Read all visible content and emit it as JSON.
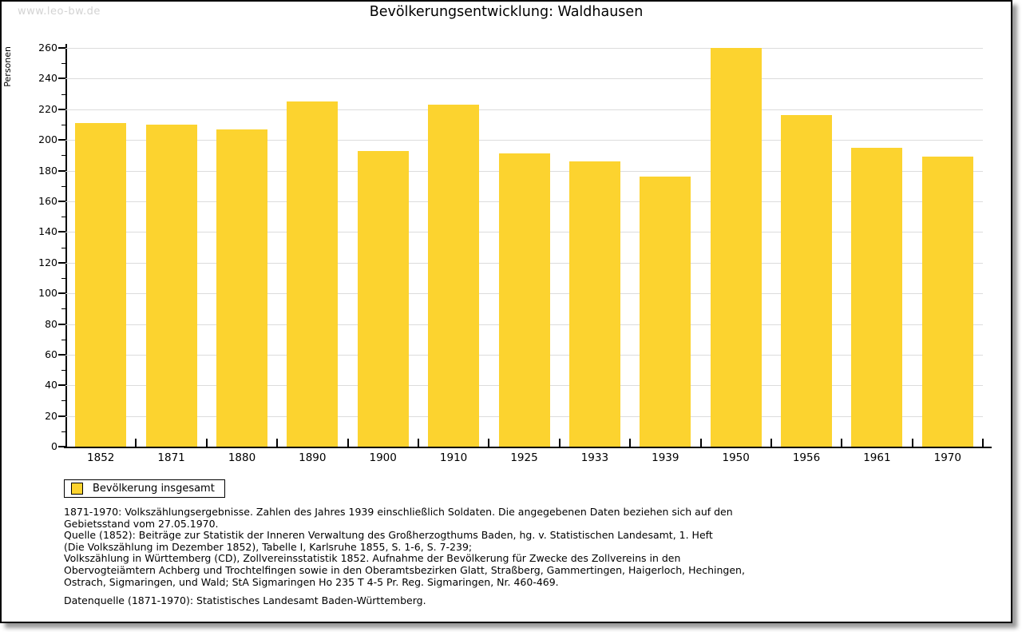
{
  "watermark": "www.leo-bw.de",
  "title": "Bevölkerungsentwicklung: Waldhausen",
  "chart_data": {
    "type": "bar",
    "title": "Bevölkerungsentwicklung: Waldhausen",
    "categories": [
      "1852",
      "1871",
      "1880",
      "1890",
      "1900",
      "1910",
      "1925",
      "1933",
      "1939",
      "1950",
      "1956",
      "1961",
      "1970"
    ],
    "series": [
      {
        "name": "Bevölkerung insgesamt",
        "values": [
          211,
          210,
          207,
          225,
          193,
          223,
          191,
          186,
          176,
          260,
          216,
          195,
          189
        ]
      }
    ],
    "xlabel": "",
    "ylabel": "Personen",
    "ylim": [
      0,
      260
    ],
    "ytick_step": 20,
    "yminor_step": 10,
    "grid": true,
    "bar_color": "#FCD32F",
    "gridline_color": "#dcdcdc",
    "legend_position": "bottom-left"
  },
  "legend": {
    "label": "Bevölkerung insgesamt",
    "swatch_color": "#FCD32F"
  },
  "footnotes": {
    "lines": [
      "1871-1970: Volkszählungsergebnisse. Zahlen des Jahres 1939 einschließlich Soldaten. Die angegebenen Daten beziehen sich auf den",
      "Gebietsstand vom 27.05.1970.",
      "Quelle (1852): Beiträge zur Statistik der Inneren Verwaltung des Großherzogthums Baden, hg. v. Statistischen Landesamt, 1. Heft",
      "(Die Volkszählung im Dezember 1852), Tabelle I, Karlsruhe 1855, S. 1-6, S. 7-239;",
      "Volkszählung in Württemberg (CD), Zollvereinsstatistik 1852. Aufnahme der Bevölkerung für Zwecke des Zollvereins in den",
      "Obervogteiämtern Achberg und Trochtelfingen sowie in den Oberamtsbezirken Glatt, Straßberg, Gammertingen, Haigerloch, Hechingen,",
      "Ostrach, Sigmaringen, und Wald; StA Sigmaringen Ho 235 T 4-5 Pr. Reg. Sigmaringen, Nr. 460-469."
    ],
    "datasource": "Datenquelle (1871-1970): Statistisches Landesamt Baden-Württemberg."
  }
}
